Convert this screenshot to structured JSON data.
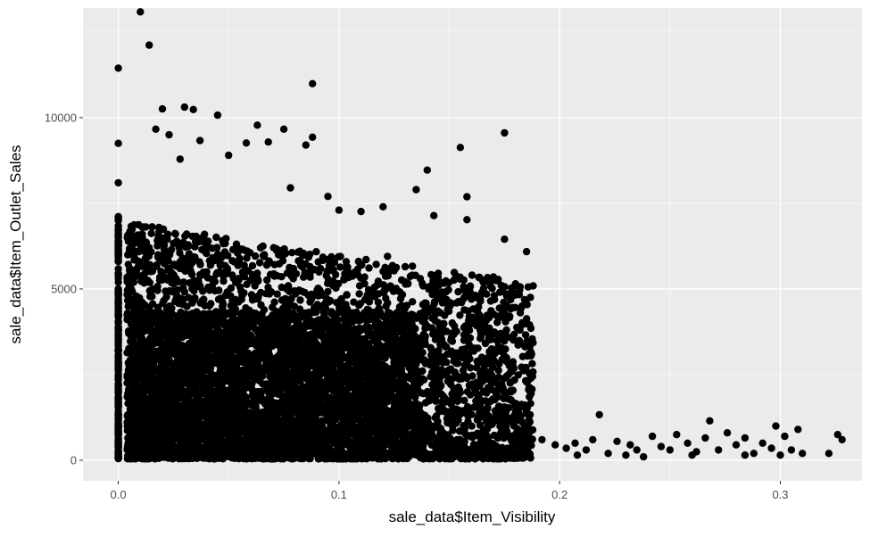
{
  "chart_data": {
    "type": "scatter",
    "xlabel": "sale_data$Item_Visibility",
    "ylabel": "sale_data$Item_Outlet_Sales",
    "xlim": [
      -0.016,
      0.337
    ],
    "ylim": [
      -600,
      13200
    ],
    "x_ticks": [
      {
        "value": 0.0,
        "label": "0.0"
      },
      {
        "value": 0.1,
        "label": "0.1"
      },
      {
        "value": 0.2,
        "label": "0.2"
      },
      {
        "value": 0.3,
        "label": "0.3"
      }
    ],
    "y_ticks": [
      {
        "value": 0,
        "label": "0"
      },
      {
        "value": 5000,
        "label": "5000"
      },
      {
        "value": 10000,
        "label": "10000"
      }
    ],
    "grid": true,
    "panel_background": "#ebebeb",
    "grid_color": "#ffffff",
    "point_color": "#000000",
    "points": [
      [
        0.01,
        13087
      ],
      [
        0.014,
        12117
      ],
      [
        0.0,
        11445
      ],
      [
        0.088,
        10993
      ],
      [
        0.03,
        10307
      ],
      [
        0.02,
        10256
      ],
      [
        0.034,
        10237
      ],
      [
        0.045,
        10072
      ],
      [
        0.017,
        9665
      ],
      [
        0.063,
        9780
      ],
      [
        0.075,
        9665
      ],
      [
        0.175,
        9555
      ],
      [
        0.023,
        9500
      ],
      [
        0.0,
        9250
      ],
      [
        0.088,
        9430
      ],
      [
        0.037,
        9330
      ],
      [
        0.155,
        9130
      ],
      [
        0.085,
        9200
      ],
      [
        0.058,
        9260
      ],
      [
        0.068,
        9290
      ],
      [
        0.05,
        8900
      ],
      [
        0.028,
        8790
      ],
      [
        0.14,
        8470
      ],
      [
        0.0,
        8100
      ],
      [
        0.158,
        7690
      ],
      [
        0.135,
        7900
      ],
      [
        0.11,
        7260
      ],
      [
        0.12,
        7400
      ],
      [
        0.158,
        7020
      ],
      [
        0.143,
        7140
      ],
      [
        0.175,
        6450
      ],
      [
        0.185,
        6090
      ],
      [
        0.005,
        6500
      ],
      [
        0.095,
        7700
      ],
      [
        0.1,
        7300
      ],
      [
        0.078,
        7950
      ],
      [
        0.122,
        5950
      ],
      [
        0.13,
        5650
      ],
      [
        0.165,
        5250
      ],
      [
        0.17,
        5350
      ],
      [
        0.18,
        5150
      ],
      [
        0.0,
        7000
      ],
      [
        0.0,
        6500
      ],
      [
        0.0,
        5800
      ],
      [
        0.148,
        4900
      ],
      [
        0.16,
        4700
      ],
      [
        0.172,
        4200
      ],
      [
        0.182,
        3800
      ],
      [
        0.186,
        3100
      ],
      [
        0.183,
        4500
      ],
      [
        0.168,
        3600
      ],
      [
        0.176,
        4800
      ],
      [
        0.192,
        600
      ],
      [
        0.198,
        450
      ],
      [
        0.203,
        350
      ],
      [
        0.207,
        500
      ],
      [
        0.212,
        300
      ],
      [
        0.218,
        1330
      ],
      [
        0.215,
        600
      ],
      [
        0.222,
        200
      ],
      [
        0.226,
        550
      ],
      [
        0.23,
        150
      ],
      [
        0.235,
        300
      ],
      [
        0.238,
        100
      ],
      [
        0.242,
        700
      ],
      [
        0.246,
        400
      ],
      [
        0.25,
        300
      ],
      [
        0.253,
        750
      ],
      [
        0.258,
        500
      ],
      [
        0.262,
        250
      ],
      [
        0.266,
        650
      ],
      [
        0.268,
        1150
      ],
      [
        0.272,
        300
      ],
      [
        0.276,
        800
      ],
      [
        0.28,
        450
      ],
      [
        0.284,
        650
      ],
      [
        0.288,
        200
      ],
      [
        0.292,
        500
      ],
      [
        0.296,
        350
      ],
      [
        0.298,
        1000
      ],
      [
        0.302,
        700
      ],
      [
        0.305,
        300
      ],
      [
        0.308,
        900
      ],
      [
        0.31,
        200
      ],
      [
        0.322,
        200
      ],
      [
        0.326,
        750
      ],
      [
        0.328,
        600
      ],
      [
        0.208,
        150
      ],
      [
        0.232,
        450
      ],
      [
        0.26,
        150
      ],
      [
        0.284,
        150
      ],
      [
        0.3,
        150
      ]
    ]
  }
}
